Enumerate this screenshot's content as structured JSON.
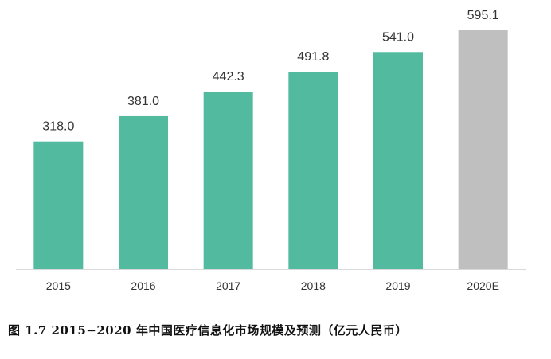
{
  "caption": "图 1.7 2015−2020 年中国医疗信息化市场规模及预测（亿元人民币）",
  "chart_data": {
    "type": "bar",
    "categories": [
      "2015",
      "2016",
      "2017",
      "2018",
      "2019",
      "2020E"
    ],
    "values": [
      318.0,
      381.0,
      442.3,
      491.8,
      541.0,
      595.1
    ],
    "value_labels": [
      "318.0",
      "381.0",
      "442.3",
      "491.8",
      "541.0",
      "595.1"
    ],
    "bar_colors": [
      "#52bb9f",
      "#52bb9f",
      "#52bb9f",
      "#52bb9f",
      "#52bb9f",
      "#bfbfbf"
    ],
    "series_note": "",
    "title": "",
    "xlabel": "",
    "ylabel": "",
    "ylim": [
      0,
      595.1
    ],
    "grid": false,
    "axis_color": "#d9d9d9"
  }
}
